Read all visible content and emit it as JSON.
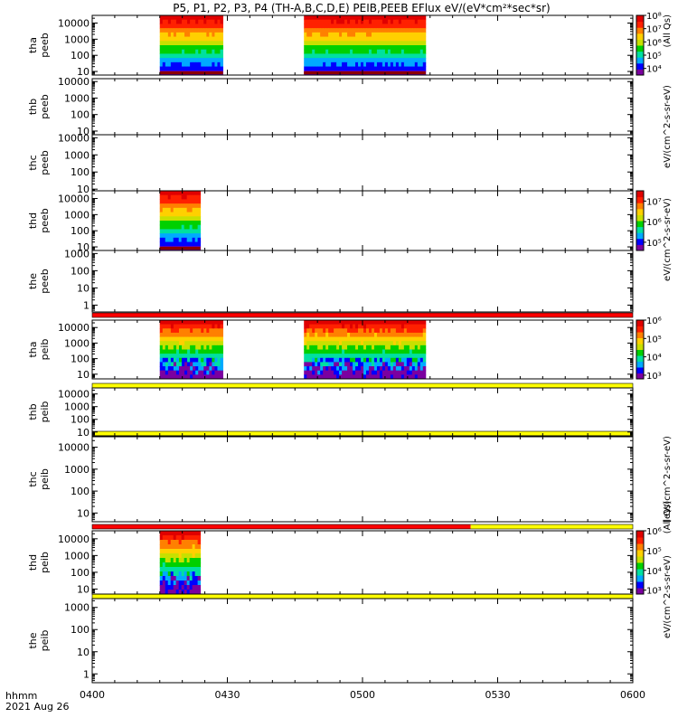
{
  "figure": {
    "title": "P5, P1, P2, P3, P4 (TH-A,B,C,D,E) PEIB,PEEB EFlux eV/(eV*cm²*sec*sr)",
    "time_label_line1": "hhmm",
    "time_label_line2": "2021 Aug 26"
  },
  "colorbar_labels": {
    "electron_units": "eV/(cm^2-s-sr-eV)",
    "electron_suffix": "(All Qs)",
    "ion_units": "[eV/(cm^2-s-sr-eV)",
    "ion_suffix": "(All Qs)"
  },
  "colors": {
    "flag_red": "#ff0000",
    "flag_yellow": "#ffff00",
    "spectra": [
      "#7b00a0",
      "#0000ff",
      "#00aaff",
      "#00e0a0",
      "#00d000",
      "#c8e000",
      "#ffd000",
      "#ff8000",
      "#ff2000",
      "#e00000"
    ]
  },
  "chart_data": {
    "type": "heatmap",
    "x_axis": {
      "label": "hhmm",
      "range": [
        "0400",
        "0600"
      ],
      "ticks": [
        "0400",
        "0430",
        "0500",
        "0530",
        "0600"
      ]
    },
    "panels": [
      {
        "ylabel": [
          "tha",
          "peeb"
        ],
        "yscale": "log",
        "ylim": [
          6,
          30000
        ],
        "y_ticks": [
          "10",
          "100",
          "1000",
          "10000"
        ],
        "data_intervals": [
          [
            "0415",
            "0429"
          ],
          [
            "0447",
            "0514"
          ]
        ],
        "colorbar": {
          "ticks": [
            "10⁴",
            "10⁵",
            "10⁶",
            "10⁷",
            "10⁸"
          ],
          "range_exp": [
            3.5,
            8
          ]
        }
      },
      {
        "ylabel": [
          "thb",
          "peeb"
        ],
        "yscale": "log",
        "ylim": [
          6,
          15000
        ],
        "y_ticks": [
          "10",
          "100",
          "1000",
          "10000"
        ],
        "data_intervals": []
      },
      {
        "ylabel": [
          "thc",
          "peeb"
        ],
        "yscale": "log",
        "ylim": [
          8,
          15000
        ],
        "y_ticks": [
          "10",
          "100",
          "1000",
          "10000"
        ],
        "data_intervals": []
      },
      {
        "ylabel": [
          "thd",
          "peeb"
        ],
        "yscale": "log",
        "ylim": [
          6,
          30000
        ],
        "y_ticks": [
          "10",
          "100",
          "1000",
          "10000"
        ],
        "data_intervals": [
          [
            "0415",
            "0424"
          ]
        ],
        "colorbar": {
          "ticks": [
            "10⁵",
            "10⁶",
            "10⁷"
          ],
          "range_exp": [
            4.6,
            7.5
          ]
        }
      },
      {
        "ylabel": [
          "the",
          "peeb"
        ],
        "yscale": "log",
        "ylim": [
          0.4,
          1500
        ],
        "y_ticks": [
          "1",
          "10",
          "100",
          "1000"
        ],
        "data_intervals": []
      },
      {
        "ylabel": [
          "tha",
          "peib"
        ],
        "yscale": "log",
        "ylim": [
          5,
          30000
        ],
        "y_ticks": [
          "10",
          "100",
          "1000",
          "10000"
        ],
        "data_intervals": [
          [
            "0415",
            "0429"
          ],
          [
            "0447",
            "0514"
          ]
        ],
        "colorbar": {
          "ticks": [
            "10³",
            "10⁴",
            "10⁵",
            "10⁶"
          ],
          "range_exp": [
            2.8,
            6
          ]
        }
      },
      {
        "ylabel": [
          "thb",
          "peib"
        ],
        "yscale": "log",
        "ylim": [
          5,
          30000
        ],
        "y_ticks": [
          "10",
          "100",
          "1000",
          "10000"
        ],
        "data_intervals": []
      },
      {
        "ylabel": [
          "thc",
          "peib"
        ],
        "yscale": "log",
        "ylim": [
          4,
          30000
        ],
        "y_ticks": [
          "10",
          "100",
          "1000",
          "10000"
        ],
        "data_intervals": []
      },
      {
        "ylabel": [
          "thd",
          "peib"
        ],
        "yscale": "log",
        "ylim": [
          5,
          30000
        ],
        "y_ticks": [
          "10",
          "100",
          "1000",
          "10000"
        ],
        "data_intervals": [
          [
            "0415",
            "0424"
          ]
        ],
        "colorbar": {
          "ticks": [
            "10³",
            "10⁴",
            "10⁵",
            "10⁶"
          ],
          "range_exp": [
            2.8,
            6
          ]
        }
      },
      {
        "ylabel": [
          "the",
          "peib"
        ],
        "yscale": "log",
        "ylim": [
          0.4,
          2500
        ],
        "y_ticks": [
          "1",
          "10",
          "100",
          "1000"
        ],
        "data_intervals": []
      }
    ],
    "flag_bars": [
      {
        "segments": [
          {
            "from": "0400",
            "to": "0600",
            "color": "red"
          }
        ]
      },
      {
        "segments": [
          {
            "from": "0400",
            "to": "0600",
            "color": "yellow"
          }
        ]
      },
      {
        "segments": [
          {
            "from": "0400",
            "to": "0600",
            "color": "yellow"
          }
        ]
      },
      {
        "segments": [
          {
            "from": "0400",
            "to": "0524",
            "color": "red"
          },
          {
            "from": "0524",
            "to": "0600",
            "color": "yellow"
          }
        ]
      },
      {
        "segments": [
          {
            "from": "0400",
            "to": "0600",
            "color": "yellow"
          }
        ]
      }
    ]
  }
}
